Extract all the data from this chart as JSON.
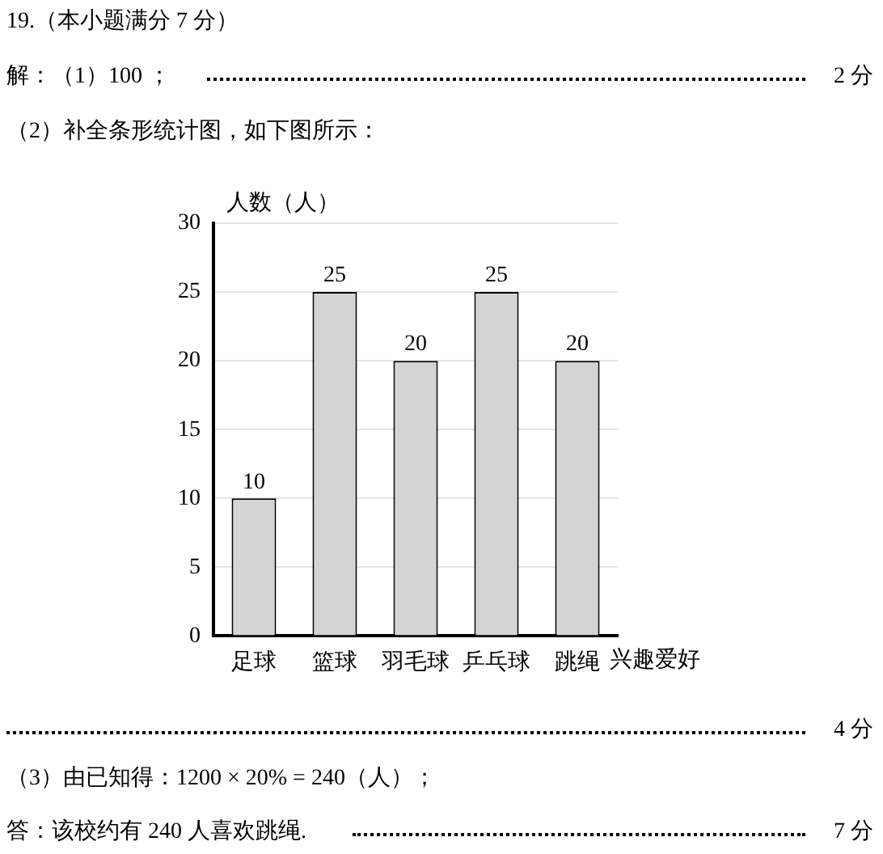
{
  "chart_data": {
    "type": "bar",
    "ylabel": "人数（人）",
    "xlabel": "兴趣爱好",
    "categories": [
      "足球",
      "篮球",
      "羽毛球",
      "乒乓球",
      "跳绳"
    ],
    "values": [
      10,
      25,
      20,
      25,
      20
    ],
    "color": "#d4d4d4",
    "ylim": [
      0,
      30
    ],
    "yticks": [
      0,
      5,
      10,
      15,
      20,
      25,
      30
    ],
    "grid": "y",
    "data_labels": true,
    "annotations": [
      "19.（本小题满分 7 分）",
      "解：（1）100 ；",
      "2 分",
      "（2）补全条形统计图，如下图所示：",
      "4 分",
      "（3）由已知得：1200 × 20% = 240（人）；",
      "答：该校约有 240 人喜欢跳绳.",
      "7 分"
    ]
  }
}
